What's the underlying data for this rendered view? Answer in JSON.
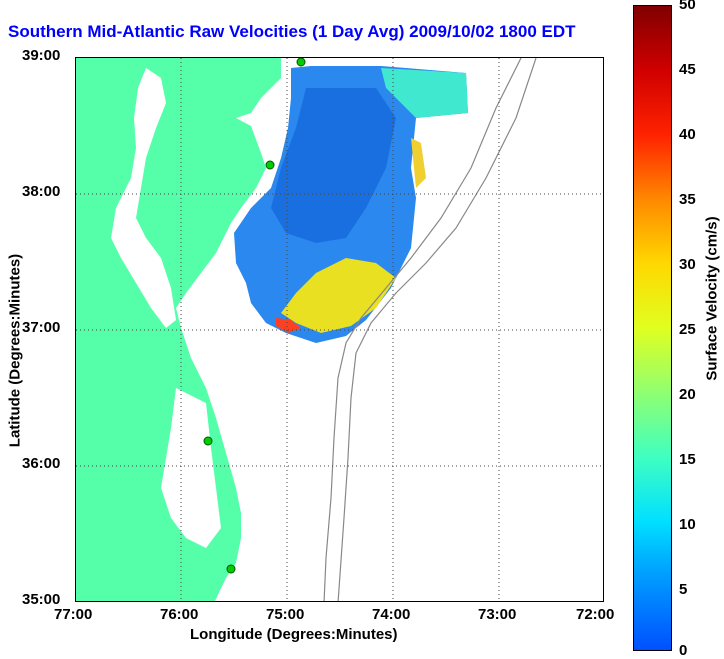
{
  "title": "Southern Mid-Atlantic Raw Velocities (1 Day Avg) 2009/10/02 1800 EDT",
  "xlabel": "Longitude (Degrees:Minutes)",
  "ylabel": "Latitude (Degrees:Minutes)",
  "x_ticks": [
    "77:00",
    "76:00",
    "75:00",
    "74:00",
    "73:00",
    "72:00"
  ],
  "y_ticks": [
    "39:00",
    "38:00",
    "37:00",
    "36:00",
    "35:00"
  ],
  "colorbar": {
    "label": "Surface Velocity (cm/s)",
    "ticks": [
      "50",
      "45",
      "40",
      "35",
      "30",
      "25",
      "20",
      "15",
      "10",
      "5",
      "0"
    ],
    "range": [
      0,
      50
    ]
  },
  "map": {
    "land_color": "#55ffaa",
    "water_color": "#ffffff",
    "extent": {
      "lon": [
        -77,
        -72
      ],
      "lat": [
        35,
        39
      ]
    },
    "grid": true
  },
  "chart_data": {
    "type": "heatmap",
    "title": "Southern Mid-Atlantic Raw Velocities (1 Day Avg) 2009/10/02 1800 EDT",
    "xlabel": "Longitude (Degrees:Minutes)",
    "ylabel": "Latitude (Degrees:Minutes)",
    "xlim": [
      -77,
      -72
    ],
    "ylim": [
      35,
      39
    ],
    "color_range": [
      0,
      50
    ],
    "color_label": "Surface Velocity (cm/s)"
  }
}
